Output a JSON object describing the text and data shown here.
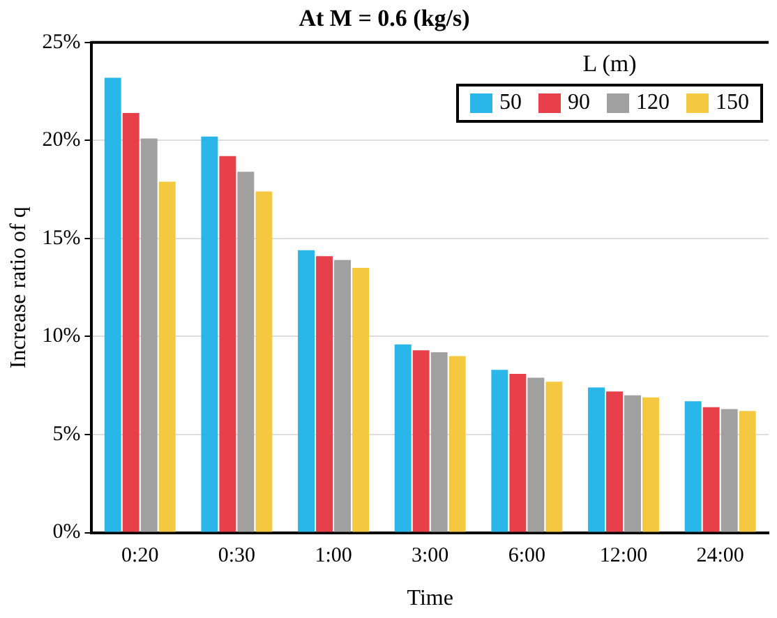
{
  "chart_data": {
    "type": "bar",
    "title": "At M = 0.6 (kg/s)",
    "xlabel": "Time",
    "ylabel": "Increase ratio of q",
    "legend_title": "L (m)",
    "legend": "top right",
    "grid": "y",
    "categories": [
      "0:20",
      "0:30",
      "1:00",
      "3:00",
      "6:00",
      "12:00",
      "24:00"
    ],
    "ylim": [
      0,
      25
    ],
    "yticks": [
      {
        "value": 0,
        "label": "0%"
      },
      {
        "value": 5,
        "label": "5%"
      },
      {
        "value": 10,
        "label": "10%"
      },
      {
        "value": 15,
        "label": "15%"
      },
      {
        "value": 20,
        "label": "20%"
      },
      {
        "value": 25,
        "label": "25%"
      }
    ],
    "series": [
      {
        "name": "50",
        "color": "#29b6e8",
        "values": [
          23.2,
          20.2,
          14.4,
          9.6,
          8.3,
          7.4,
          6.7
        ]
      },
      {
        "name": "90",
        "color": "#e8404a",
        "values": [
          21.4,
          19.2,
          14.1,
          9.3,
          8.1,
          7.2,
          6.4
        ]
      },
      {
        "name": "120",
        "color": "#a0a0a0",
        "values": [
          20.1,
          18.4,
          13.9,
          9.2,
          7.9,
          7.0,
          6.3
        ]
      },
      {
        "name": "150",
        "color": "#f5c842",
        "values": [
          17.9,
          17.4,
          13.5,
          9.0,
          7.7,
          6.9,
          6.2
        ]
      }
    ]
  }
}
